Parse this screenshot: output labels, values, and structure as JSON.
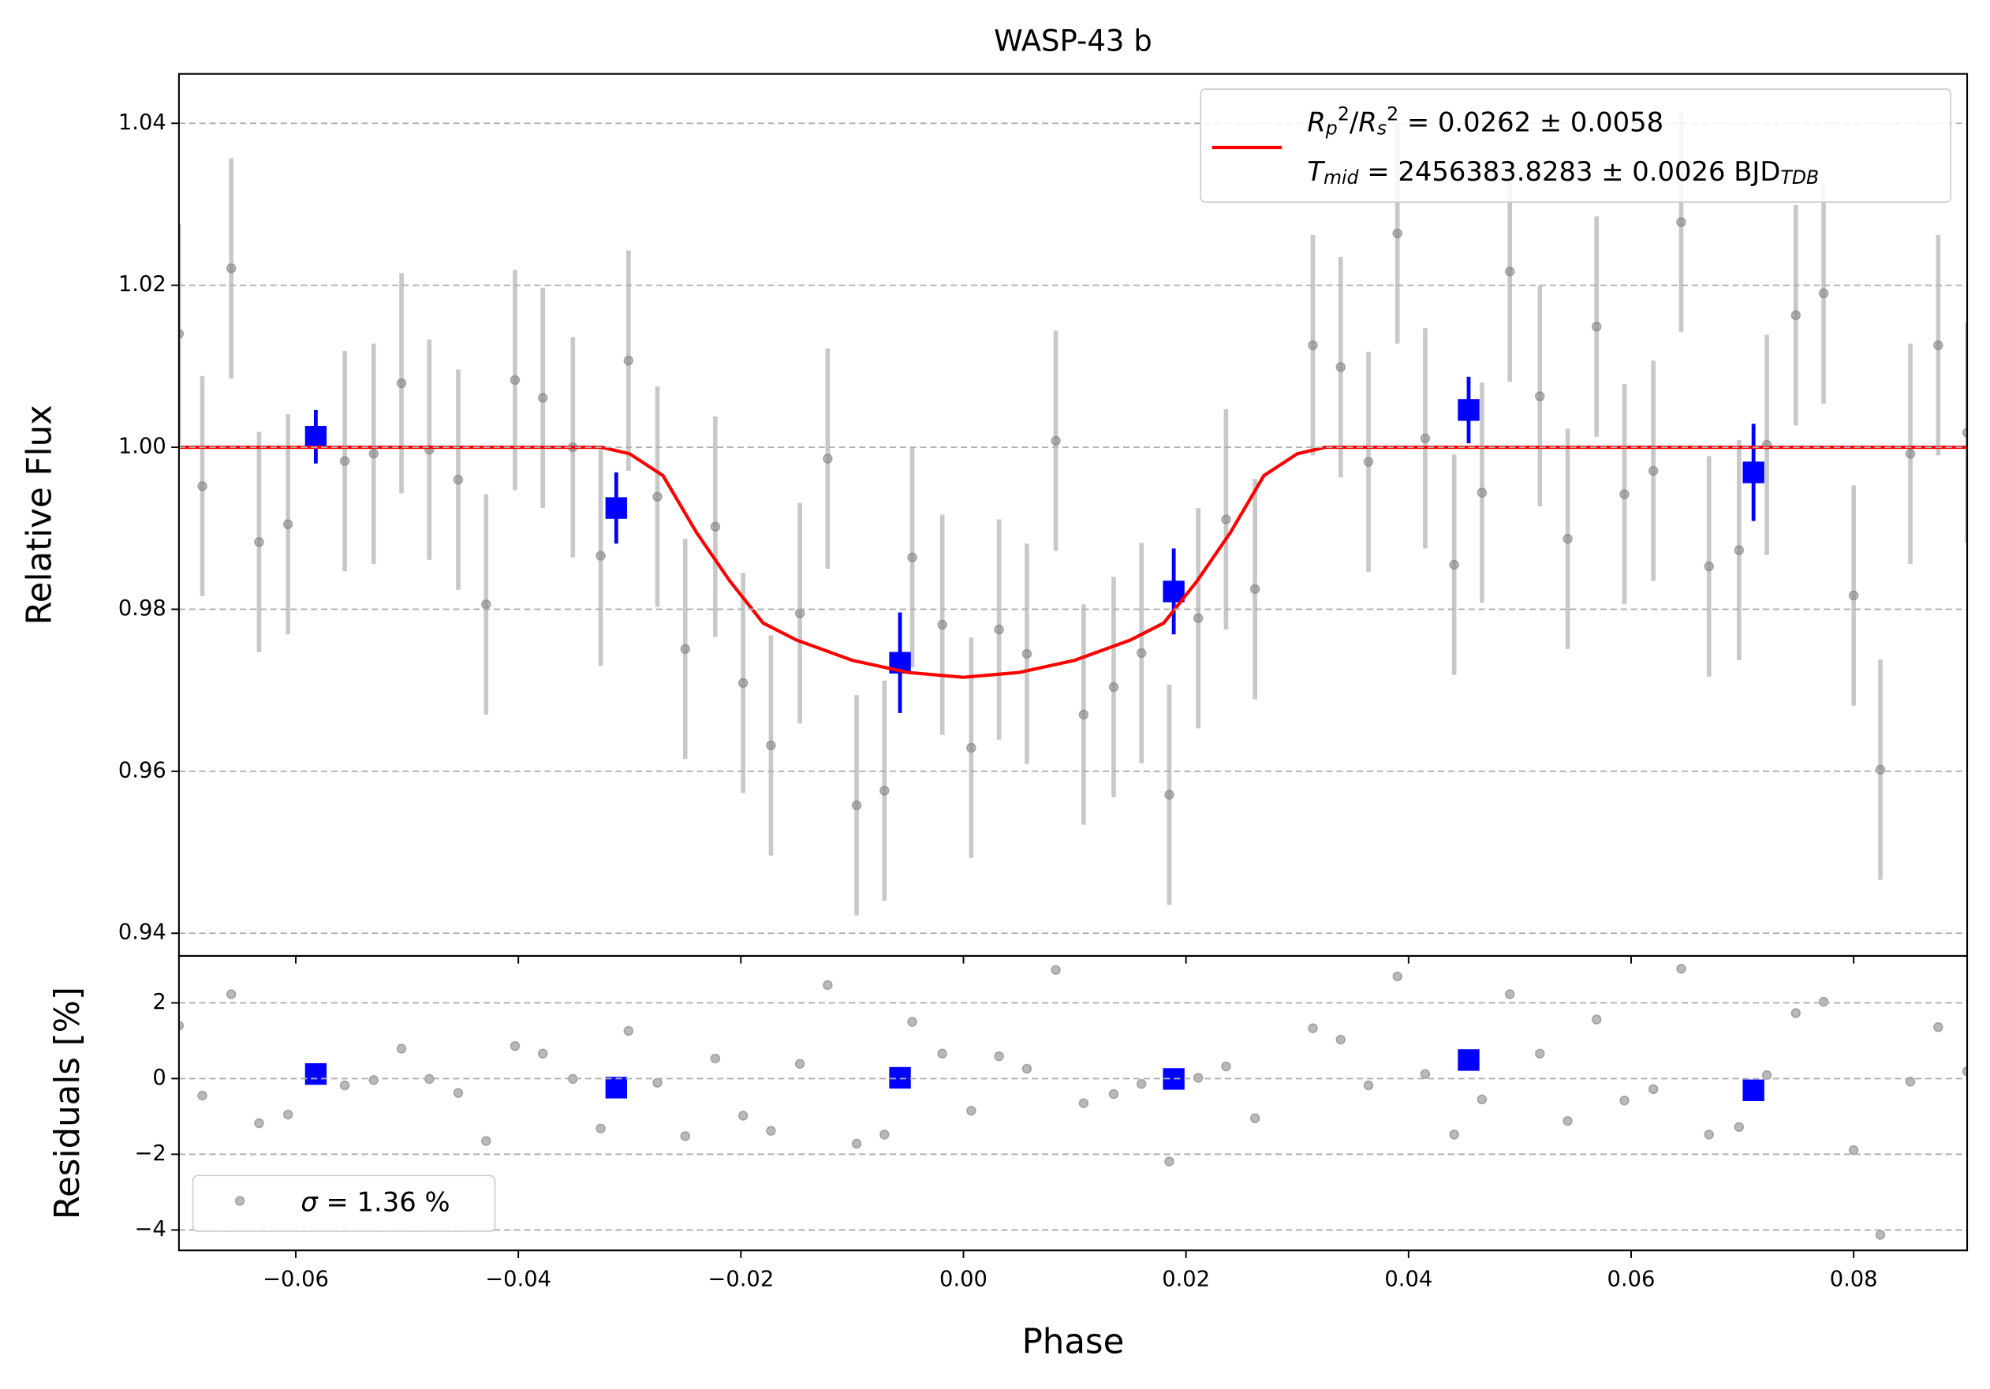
{
  "chart_data": [
    {
      "type": "errorbar",
      "title": "WASP-43 b",
      "ylabel": "Relative Flux",
      "xlim": [
        -0.0705,
        0.0902
      ],
      "ylim": [
        0.9372,
        1.0461
      ],
      "xticks": [
        -0.06,
        -0.04,
        -0.02,
        0,
        0.02,
        0.04,
        0.06,
        0.08
      ],
      "xtick_labels": false,
      "yticks": [
        0.94,
        0.96,
        0.98,
        {
          "value": 1.0,
          "label": "1.00"
        },
        1.02,
        1.04
      ],
      "grid": true,
      "legend": "upper right",
      "series": [
        {
          "kind": "points",
          "color": "#808080",
          "error_color": "#c8c8c8",
          "error": 0.0136,
          "x": [
            -0.0705,
            -0.0684,
            -0.0658,
            -0.0633,
            -0.0607,
            -0.0556,
            -0.053,
            -0.0505,
            -0.048,
            -0.0454,
            -0.0429,
            -0.0403,
            -0.0378,
            -0.0351,
            -0.0326,
            -0.0301,
            -0.0275,
            -0.025,
            -0.0223,
            -0.0198,
            -0.0173,
            -0.0147,
            -0.0122,
            -0.0096,
            -0.0071,
            -0.0046,
            -0.0019,
            0.0007,
            0.0032,
            0.0057,
            0.0083,
            0.0108,
            0.0135,
            0.016,
            0.0185,
            0.0211,
            0.0236,
            0.0262,
            0.0314,
            0.0339,
            0.0364,
            0.039,
            0.0415,
            0.0441,
            0.0466,
            0.0491,
            0.0518,
            0.0543,
            0.0569,
            0.0594,
            0.062,
            0.0645,
            0.067,
            0.0697,
            0.0722,
            0.0748,
            0.0773,
            0.08,
            0.0824,
            0.0851,
            0.0876,
            0.0902
          ],
          "values": [
            1.014,
            0.9952,
            1.0221,
            0.9883,
            0.9905,
            0.9983,
            0.9992,
            1.0079,
            0.9997,
            0.996,
            0.9806,
            1.0083,
            1.0061,
            1.0,
            0.9866,
            1.0107,
            0.9939,
            0.9751,
            0.9902,
            0.9709,
            0.9632,
            0.9795,
            0.9986,
            0.9558,
            0.9576,
            0.9864,
            0.9781,
            0.9629,
            0.9775,
            0.9745,
            1.0008,
            0.967,
            0.9704,
            0.9746,
            0.9571,
            0.9789,
            0.9911,
            0.9825,
            1.0126,
            1.0099,
            0.9982,
            1.0264,
            1.0011,
            0.9855,
            0.9944,
            1.0217,
            1.0063,
            0.9887,
            1.0149,
            0.9942,
            0.9971,
            1.0278,
            0.9853,
            0.9873,
            1.0003,
            1.0163,
            1.019,
            0.9817,
            0.9602,
            0.9992,
            1.0126,
            1.0018
          ]
        },
        {
          "kind": "binned",
          "color": "#0000ff",
          "x": [
            -0.0582,
            -0.0312,
            -0.0057,
            0.0189,
            0.0454,
            0.071
          ],
          "values": [
            1.0013,
            0.9925,
            0.9734,
            0.9822,
            1.0046,
            0.9969
          ],
          "errors": [
            0.0033,
            0.0044,
            0.0062,
            0.0053,
            0.0041,
            0.006
          ]
        },
        {
          "kind": "model",
          "color": "#ff0000",
          "x": [
            -0.0705,
            -0.0325,
            -0.03,
            -0.027,
            -0.024,
            -0.021,
            -0.018,
            -0.015,
            -0.01,
            -0.005,
            0,
            0.005,
            0.01,
            0.015,
            0.018,
            0.021,
            0.024,
            0.027,
            0.03,
            0.0325,
            0.0902
          ],
          "values": [
            1,
            1,
            0.9992,
            0.9965,
            0.9895,
            0.9835,
            0.9783,
            0.9762,
            0.9737,
            0.9722,
            0.9716,
            0.9722,
            0.9737,
            0.9762,
            0.9783,
            0.9835,
            0.9895,
            0.9965,
            0.9992,
            1,
            1
          ],
          "label": [
            [
              {
                "t": "R",
                "s": "i"
              },
              {
                "t": "p",
                "s": "sub"
              },
              {
                "t": "2",
                "s": "sup"
              },
              {
                "t": "/",
                "s": "n"
              },
              {
                "t": "R",
                "s": "i"
              },
              {
                "t": "s",
                "s": "sub"
              },
              {
                "t": "2",
                "s": "sup"
              },
              {
                "t": " = 0.0262 ± 0.0058",
                "s": "n"
              }
            ],
            [
              {
                "t": "T",
                "s": "i"
              },
              {
                "t": "mid",
                "s": "sub"
              },
              {
                "t": " = 2456383.8283 ± 0.0026 BJD",
                "s": "n"
              },
              {
                "t": "TDB",
                "s": "sub"
              }
            ]
          ]
        }
      ]
    },
    {
      "type": "errorbar",
      "ylabel": "Residuals [%]",
      "xlabel": "Phase",
      "xlim": [
        -0.0705,
        0.0902
      ],
      "ylim": [
        -4.54,
        3.24
      ],
      "xticks": [
        {
          "value": -0.06,
          "label": "−0.06"
        },
        {
          "value": -0.04,
          "label": "−0.04"
        },
        {
          "value": -0.02,
          "label": "−0.02"
        },
        {
          "value": 0,
          "label": "0.00"
        },
        {
          "value": 0.02,
          "label": "0.02"
        },
        {
          "value": 0.04,
          "label": "0.04"
        },
        {
          "value": 0.06,
          "label": "0.06"
        },
        {
          "value": 0.08,
          "label": "0.08"
        }
      ],
      "xtick_labels": true,
      "yticks": [
        {
          "value": -4,
          "label": "−4"
        },
        {
          "value": -2,
          "label": "−2"
        },
        0,
        2
      ],
      "grid": true,
      "legend": "lower left",
      "series": [
        {
          "kind": "points",
          "color": "#808080",
          "x": [
            -0.0705,
            -0.0684,
            -0.0658,
            -0.0633,
            -0.0607,
            -0.0556,
            -0.053,
            -0.0505,
            -0.048,
            -0.0454,
            -0.0429,
            -0.0403,
            -0.0378,
            -0.0351,
            -0.0326,
            -0.0301,
            -0.0275,
            -0.025,
            -0.0223,
            -0.0198,
            -0.0173,
            -0.0147,
            -0.0122,
            -0.0096,
            -0.0071,
            -0.0046,
            -0.0019,
            0.0007,
            0.0032,
            0.0057,
            0.0083,
            0.0108,
            0.0135,
            0.016,
            0.0185,
            0.0211,
            0.0236,
            0.0262,
            0.0314,
            0.0339,
            0.0364,
            0.039,
            0.0415,
            0.0441,
            0.0466,
            0.0491,
            0.0518,
            0.0543,
            0.0569,
            0.0594,
            0.062,
            0.0645,
            0.067,
            0.0697,
            0.0722,
            0.0748,
            0.0773,
            0.08,
            0.0824,
            0.0851,
            0.0876,
            0.0902
          ],
          "values": [
            1.4,
            -0.45,
            2.23,
            -1.18,
            -0.95,
            -0.18,
            -0.04,
            0.79,
            -0.01,
            -0.38,
            -1.65,
            0.86,
            0.66,
            -0.01,
            -1.32,
            1.26,
            -0.11,
            -1.52,
            0.53,
            -0.98,
            -1.38,
            0.39,
            2.47,
            -1.72,
            -1.48,
            1.5,
            0.66,
            -0.85,
            0.59,
            0.26,
            2.87,
            -0.65,
            -0.41,
            -0.14,
            -2.19,
            0.02,
            0.32,
            -1.05,
            1.33,
            1.03,
            -0.18,
            2.7,
            0.12,
            -1.48,
            -0.55,
            2.23,
            0.66,
            -1.12,
            1.56,
            -0.58,
            -0.28,
            2.9,
            -1.48,
            -1.28,
            0.09,
            1.73,
            2.03,
            -1.89,
            -4.13,
            -0.08,
            1.36,
            0.19
          ],
          "label": [
            [
              {
                "t": "σ",
                "s": "i"
              },
              {
                "t": " = 1.36 %",
                "s": "n"
              }
            ]
          ]
        },
        {
          "kind": "binned",
          "color": "#0000ff",
          "x": [
            -0.0582,
            -0.0312,
            -0.0057,
            0.0189,
            0.0454,
            0.071
          ],
          "values": [
            0.12,
            -0.24,
            0.02,
            -0.01,
            0.49,
            -0.31
          ]
        }
      ]
    }
  ]
}
